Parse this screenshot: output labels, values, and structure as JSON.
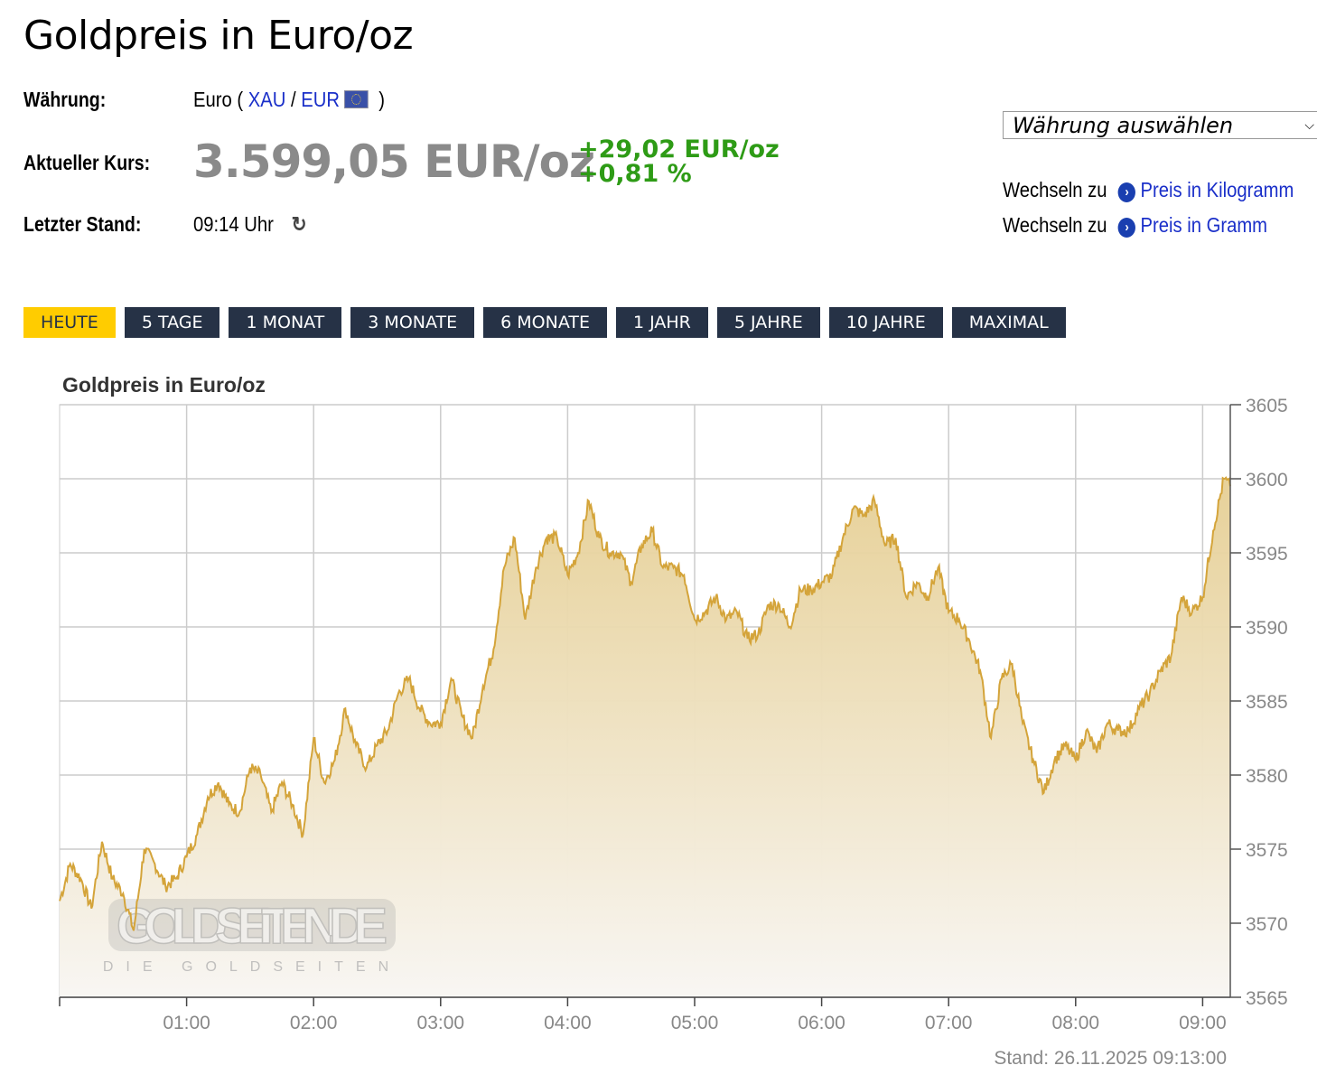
{
  "page_title": "Goldpreis in Euro/oz",
  "info": {
    "currency_label": "Währung:",
    "currency_value": "Euro (",
    "currency_link1": "XAU",
    "currency_sep": "/",
    "currency_link2": "EUR",
    "currency_close": ")",
    "flag_icon": "eu-flag-icon",
    "price_label": "Aktueller Kurs:",
    "price": "3.599,05 EUR/oz",
    "change_abs": "+29,02 EUR/oz",
    "change_pct": "+0,81 %",
    "change_color": "#2e9b16",
    "updated_label": "Letzter Stand:",
    "updated_value": "09:14 Uhr",
    "refresh_icon": "refresh-icon"
  },
  "currency_select": {
    "value": "Währung auswählen"
  },
  "switch_links": [
    {
      "prefix": "Wechseln zu",
      "label": "Preis in Kilogramm"
    },
    {
      "prefix": "Wechseln zu",
      "label": "Preis in Gramm"
    }
  ],
  "tabs": [
    {
      "label": "HEUTE",
      "active": true
    },
    {
      "label": "5 TAGE"
    },
    {
      "label": "1 MONAT"
    },
    {
      "label": "3 MONATE"
    },
    {
      "label": "6 MONATE"
    },
    {
      "label": "1 JAHR"
    },
    {
      "label": "5 JAHRE"
    },
    {
      "label": "10 JAHRE"
    },
    {
      "label": "MAXIMAL"
    }
  ],
  "footer": {
    "stand": "Stand: 26.11.2025 09:13:00"
  },
  "chart_data": {
    "type": "area",
    "title": "Goldpreis in Euro/oz",
    "watermark": "GOLDSEITEN.DE",
    "watermark_sub": "DIE GOLDSEITEN",
    "xlim": [
      "00:00",
      "09:13"
    ],
    "ylim": [
      3565,
      3605
    ],
    "x_ticks": [
      "01:00",
      "02:00",
      "03:00",
      "04:00",
      "05:00",
      "06:00",
      "07:00",
      "08:00",
      "09:00"
    ],
    "y_ticks": [
      3565,
      3570,
      3575,
      3580,
      3585,
      3590,
      3595,
      3600,
      3605
    ],
    "y_axis_position": "right",
    "grid": true,
    "line_color": "#d4a43a",
    "fill_color": "#e8d39c",
    "points": [
      [
        "00:00",
        3571.5
      ],
      [
        "00:05",
        3574
      ],
      [
        "00:10",
        3573
      ],
      [
        "00:15",
        3571
      ],
      [
        "00:20",
        3575.5
      ],
      [
        "00:25",
        3573
      ],
      [
        "00:30",
        3572
      ],
      [
        "00:35",
        3569.5
      ],
      [
        "00:40",
        3575
      ],
      [
        "00:45",
        3574
      ],
      [
        "00:50",
        3572.5
      ],
      [
        "00:55",
        3573
      ],
      [
        "01:00",
        3574.5
      ],
      [
        "01:05",
        3576
      ],
      [
        "01:10",
        3578.5
      ],
      [
        "01:15",
        3579.5
      ],
      [
        "01:20",
        3578
      ],
      [
        "01:25",
        3577.5
      ],
      [
        "01:30",
        3580.5
      ],
      [
        "01:35",
        3580
      ],
      [
        "01:40",
        3577.5
      ],
      [
        "01:45",
        3579.5
      ],
      [
        "01:50",
        3578
      ],
      [
        "01:55",
        3576
      ],
      [
        "02:00",
        3582.5
      ],
      [
        "02:05",
        3579.5
      ],
      [
        "02:10",
        3581
      ],
      [
        "02:15",
        3584.5
      ],
      [
        "02:20",
        3582
      ],
      [
        "02:25",
        3580.5
      ],
      [
        "02:30",
        3582
      ],
      [
        "02:35",
        3583
      ],
      [
        "02:40",
        3585.5
      ],
      [
        "02:45",
        3586.5
      ],
      [
        "02:50",
        3584.5
      ],
      [
        "02:55",
        3583.5
      ],
      [
        "03:00",
        3583.5
      ],
      [
        "03:05",
        3586.5
      ],
      [
        "03:10",
        3584
      ],
      [
        "03:15",
        3582.5
      ],
      [
        "03:20",
        3586
      ],
      [
        "03:25",
        3588.5
      ],
      [
        "03:30",
        3594
      ],
      [
        "03:35",
        3596
      ],
      [
        "03:40",
        3590.5
      ],
      [
        "03:45",
        3594
      ],
      [
        "03:50",
        3596
      ],
      [
        "03:55",
        3596
      ],
      [
        "04:00",
        3593.5
      ],
      [
        "04:05",
        3595
      ],
      [
        "04:10",
        3598.5
      ],
      [
        "04:15",
        3596
      ],
      [
        "04:20",
        3595
      ],
      [
        "04:25",
        3595
      ],
      [
        "04:30",
        3593
      ],
      [
        "04:35",
        3595.5
      ],
      [
        "04:40",
        3596.5
      ],
      [
        "04:45",
        3594
      ],
      [
        "04:50",
        3594
      ],
      [
        "04:55",
        3593.5
      ],
      [
        "05:00",
        3590.5
      ],
      [
        "05:05",
        3591
      ],
      [
        "05:10",
        3592
      ],
      [
        "05:15",
        3590.5
      ],
      [
        "05:20",
        3591
      ],
      [
        "05:25",
        3589.2
      ],
      [
        "05:30",
        3589.5
      ],
      [
        "05:35",
        3591.5
      ],
      [
        "05:40",
        3591.5
      ],
      [
        "05:45",
        3590
      ],
      [
        "05:50",
        3592.5
      ],
      [
        "05:55",
        3592.5
      ],
      [
        "06:00",
        3593
      ],
      [
        "06:05",
        3593.5
      ],
      [
        "06:10",
        3596
      ],
      [
        "06:15",
        3598
      ],
      [
        "06:20",
        3597.5
      ],
      [
        "06:25",
        3598.5
      ],
      [
        "06:30",
        3595.5
      ],
      [
        "06:35",
        3596
      ],
      [
        "06:40",
        3592
      ],
      [
        "06:45",
        3593
      ],
      [
        "06:50",
        3592
      ],
      [
        "06:55",
        3594
      ],
      [
        "07:00",
        3591
      ],
      [
        "07:05",
        3590.5
      ],
      [
        "07:10",
        3589
      ],
      [
        "07:15",
        3587
      ],
      [
        "07:20",
        3582.5
      ],
      [
        "07:25",
        3586.5
      ],
      [
        "07:30",
        3587.5
      ],
      [
        "07:35",
        3583.5
      ],
      [
        "07:40",
        3581
      ],
      [
        "07:45",
        3578.8
      ],
      [
        "07:50",
        3581
      ],
      [
        "07:55",
        3582
      ],
      [
        "08:00",
        3581
      ],
      [
        "08:05",
        3583
      ],
      [
        "08:10",
        3581.5
      ],
      [
        "08:15",
        3583.5
      ],
      [
        "08:20",
        3583
      ],
      [
        "08:25",
        3583
      ],
      [
        "08:30",
        3584.5
      ],
      [
        "08:35",
        3585.5
      ],
      [
        "08:40",
        3587
      ],
      [
        "08:45",
        3588
      ],
      [
        "08:50",
        3592
      ],
      [
        "08:55",
        3591
      ],
      [
        "09:00",
        3592
      ],
      [
        "09:05",
        3596.5
      ],
      [
        "09:10",
        3600
      ],
      [
        "09:13",
        3599.5
      ]
    ]
  }
}
